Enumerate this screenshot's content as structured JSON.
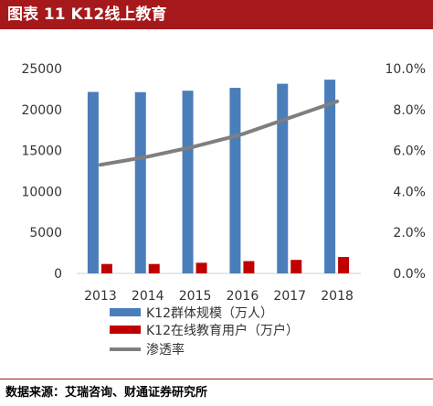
{
  "figure": {
    "title": "图表 11 K12线上教育",
    "source": "数据来源：艾瑞咨询、财通证券研究所"
  },
  "chart_data": {
    "type": "bar",
    "categories": [
      "2013",
      "2014",
      "2015",
      "2016",
      "2017",
      "2018"
    ],
    "series": [
      {
        "name": "K12群体规模（万人）",
        "kind": "bar",
        "axis": "left",
        "color": "#4a7ebb",
        "values": [
          22150,
          22120,
          22300,
          22650,
          23150,
          23650
        ]
      },
      {
        "name": "K12在线教育用户（万户）",
        "kind": "bar",
        "axis": "left",
        "color": "#c00000",
        "values": [
          1150,
          1150,
          1300,
          1500,
          1650,
          2000
        ]
      },
      {
        "name": "渗透率",
        "kind": "line",
        "axis": "right",
        "color": "#7f7f7f",
        "values": [
          0.053,
          0.057,
          0.062,
          0.068,
          0.076,
          0.084
        ]
      }
    ],
    "y_left": {
      "min": 0,
      "max": 25000,
      "ticks": [
        "0",
        "5000",
        "10000",
        "15000",
        "20000",
        "25000"
      ]
    },
    "y_right": {
      "min": 0,
      "max": 0.1,
      "ticks": [
        "0.0%",
        "2.0%",
        "4.0%",
        "6.0%",
        "8.0%",
        "10.0%"
      ]
    },
    "grid": false,
    "legend_position": "bottom"
  }
}
